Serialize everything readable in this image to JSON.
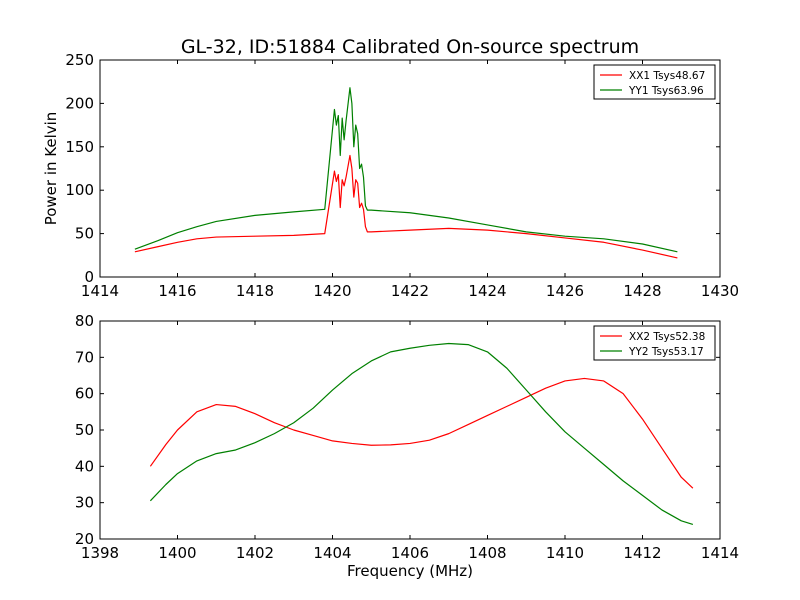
{
  "figure": {
    "title": "GL-32, ID:51884 Calibrated On-source spectrum"
  },
  "chart_data": [
    {
      "type": "line",
      "title": "GL-32, ID:51884 Calibrated On-source spectrum",
      "xlabel": "",
      "ylabel": "Power in Kelvin",
      "xlim": [
        1414,
        1430
      ],
      "ylim": [
        0,
        250
      ],
      "xticks": [
        1414,
        1416,
        1418,
        1420,
        1422,
        1424,
        1426,
        1428,
        1430
      ],
      "yticks": [
        0,
        50,
        100,
        150,
        200,
        250
      ],
      "grid": false,
      "legend_position": "top-right",
      "series": [
        {
          "name": "XX1 Tsys48.67",
          "color": "#ff0000",
          "x": [
            1414.9,
            1415.5,
            1416,
            1416.5,
            1417,
            1418,
            1419,
            1419.8,
            1420.05,
            1420.1,
            1420.15,
            1420.2,
            1420.25,
            1420.3,
            1420.35,
            1420.45,
            1420.5,
            1420.55,
            1420.6,
            1420.65,
            1420.7,
            1420.75,
            1420.8,
            1420.85,
            1420.9,
            1421,
            1422,
            1423,
            1424,
            1425,
            1426,
            1427,
            1428,
            1428.9
          ],
          "y": [
            29,
            35,
            40,
            44,
            46,
            47,
            48,
            50,
            122,
            110,
            118,
            80,
            112,
            105,
            115,
            140,
            125,
            92,
            112,
            108,
            80,
            85,
            78,
            58,
            52,
            52,
            54,
            56,
            54,
            50,
            45,
            40,
            31,
            22
          ]
        },
        {
          "name": "YY1 Tsys63.96",
          "color": "#008000",
          "x": [
            1414.9,
            1415.5,
            1416,
            1416.5,
            1417,
            1418,
            1419,
            1419.8,
            1420.05,
            1420.1,
            1420.15,
            1420.2,
            1420.25,
            1420.3,
            1420.35,
            1420.45,
            1420.5,
            1420.55,
            1420.6,
            1420.65,
            1420.7,
            1420.75,
            1420.8,
            1420.85,
            1420.9,
            1421,
            1422,
            1423,
            1424,
            1425,
            1426,
            1427,
            1428,
            1428.9
          ],
          "y": [
            32,
            42,
            51,
            58,
            64,
            71,
            75,
            78,
            193,
            175,
            186,
            140,
            183,
            158,
            180,
            218,
            200,
            150,
            175,
            165,
            125,
            130,
            115,
            82,
            77,
            77,
            74,
            68,
            60,
            52,
            47,
            44,
            38,
            29
          ]
        }
      ]
    },
    {
      "type": "line",
      "title": "",
      "xlabel": "Frequency (MHz)",
      "ylabel": "",
      "xlim": [
        1398,
        1414
      ],
      "ylim": [
        20,
        80
      ],
      "xticks": [
        1398,
        1400,
        1402,
        1404,
        1406,
        1408,
        1410,
        1412,
        1414
      ],
      "yticks": [
        20,
        30,
        40,
        50,
        60,
        70,
        80
      ],
      "grid": false,
      "legend_position": "top-right",
      "series": [
        {
          "name": "XX2 Tsys52.38",
          "color": "#ff0000",
          "x": [
            1399.3,
            1399.7,
            1400,
            1400.5,
            1401,
            1401.5,
            1402,
            1402.5,
            1403,
            1403.5,
            1404,
            1404.5,
            1405,
            1405.5,
            1406,
            1406.5,
            1407,
            1407.5,
            1408,
            1408.5,
            1409,
            1409.5,
            1410,
            1410.5,
            1411,
            1411.5,
            1412,
            1412.5,
            1413,
            1413.3
          ],
          "y": [
            40,
            46,
            50,
            55,
            57,
            56.5,
            54.5,
            52,
            50,
            48.5,
            47,
            46.3,
            45.8,
            45.9,
            46.3,
            47.2,
            49,
            51.5,
            54,
            56.5,
            59,
            61.5,
            63.5,
            64.2,
            63.5,
            60,
            53,
            45,
            37,
            34
          ]
        },
        {
          "name": "YY2 Tsys53.17",
          "color": "#008000",
          "x": [
            1399.3,
            1399.7,
            1400,
            1400.5,
            1401,
            1401.5,
            1402,
            1402.5,
            1403,
            1403.5,
            1404,
            1404.5,
            1405,
            1405.5,
            1406,
            1406.5,
            1407,
            1407.5,
            1408,
            1408.5,
            1409,
            1409.5,
            1410,
            1410.5,
            1411,
            1411.5,
            1412,
            1412.5,
            1413,
            1413.3
          ],
          "y": [
            30.5,
            35,
            38,
            41.5,
            43.5,
            44.5,
            46.5,
            49,
            52,
            56,
            61,
            65.5,
            69,
            71.5,
            72.5,
            73.3,
            73.8,
            73.5,
            71.5,
            67,
            61,
            55,
            49.5,
            45,
            40.5,
            36,
            32,
            28,
            25,
            24
          ]
        }
      ]
    }
  ]
}
